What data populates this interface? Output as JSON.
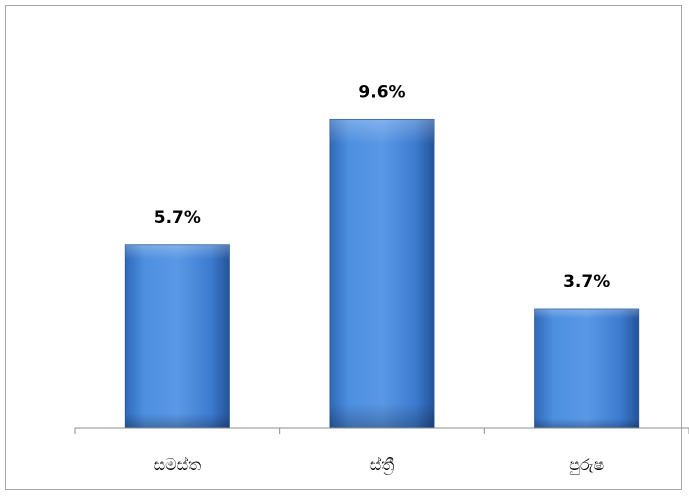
{
  "chart_data": {
    "type": "bar",
    "categories": [
      "සමස්ත",
      "ස්ත්‍රී",
      "පුරුෂ"
    ],
    "values": [
      5.7,
      9.6,
      3.7
    ],
    "value_labels": [
      "5.7%",
      "9.6%",
      "3.7%"
    ],
    "title": "",
    "xlabel": "",
    "ylabel": "",
    "ylim": [
      0,
      11.45
    ],
    "grid": false,
    "legend": "none",
    "bar_color": "#3f7fd4",
    "bar_edge_color": "#2a5a9c"
  }
}
